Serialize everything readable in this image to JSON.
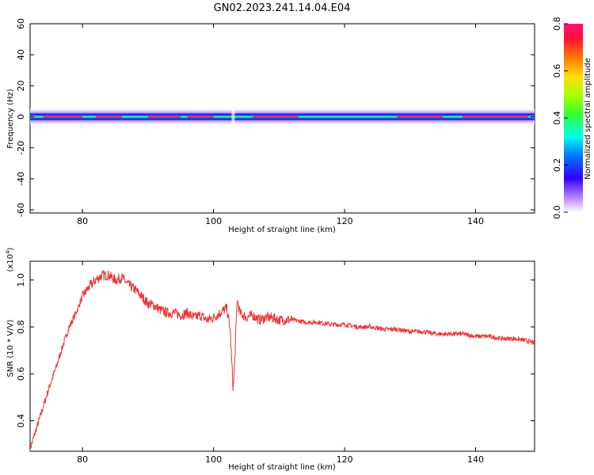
{
  "title": "GN02.2023.241.14.04.E04",
  "chart_data": [
    {
      "type": "heatmap",
      "xlabel": "Height of straight line (km)",
      "ylabel": "Frequency (Hz)",
      "xlim": [
        72,
        149
      ],
      "ylim": [
        -62,
        60
      ],
      "xticks": [
        80,
        100,
        120,
        140
      ],
      "yticks": [
        -60,
        -40,
        -20,
        0,
        20,
        40,
        60
      ],
      "colorbar": {
        "label": "Normalized spectral amplitude",
        "range": [
          0,
          0.8
        ],
        "ticks": [
          "0.0",
          "0.2",
          "0.4",
          "0.6",
          "0.8"
        ]
      },
      "band": {
        "freq_center": 0,
        "freq_halfwidth": 6,
        "dip_height_km": 103
      }
    },
    {
      "type": "line",
      "xlabel": "Height of straight line (km)",
      "ylabel": "SNR (10 * V/V)",
      "ylabel_multiplier": "(x10",
      "ylabel_multiplier_exp": "4",
      "ylabel_multiplier_close": ")",
      "xlim": [
        72,
        149
      ],
      "ylim": [
        0.27,
        1.08
      ],
      "xticks": [
        80,
        100,
        120,
        140
      ],
      "yticks": [
        "0.4",
        "0.6",
        "0.8",
        "1.0"
      ],
      "line_color": "#ee3333",
      "series": [
        {
          "x": [
            72,
            73,
            74,
            75,
            76,
            77,
            78,
            79,
            80,
            81,
            82,
            83,
            84,
            85,
            86,
            87,
            88,
            89,
            90,
            91,
            92,
            93,
            94,
            95,
            96,
            97,
            98,
            99,
            100,
            101,
            102,
            102.5,
            103,
            103.3,
            103.6,
            104,
            105,
            106,
            107,
            108,
            109,
            110,
            112,
            114,
            116,
            118,
            120,
            122,
            124,
            126,
            128,
            130,
            132,
            134,
            136,
            138,
            140,
            142,
            144,
            146,
            148,
            149
          ],
          "values": [
            0.28,
            0.37,
            0.46,
            0.55,
            0.63,
            0.72,
            0.8,
            0.86,
            0.93,
            0.97,
            1.0,
            1.02,
            1.02,
            1.0,
            1.01,
            0.98,
            0.96,
            0.93,
            0.9,
            0.89,
            0.87,
            0.86,
            0.86,
            0.85,
            0.86,
            0.84,
            0.85,
            0.83,
            0.84,
            0.86,
            0.88,
            0.8,
            0.53,
            0.7,
            0.92,
            0.86,
            0.84,
            0.85,
            0.83,
            0.84,
            0.84,
            0.83,
            0.83,
            0.82,
            0.82,
            0.81,
            0.81,
            0.8,
            0.8,
            0.79,
            0.79,
            0.78,
            0.78,
            0.77,
            0.77,
            0.77,
            0.76,
            0.76,
            0.75,
            0.75,
            0.74,
            0.73
          ]
        }
      ]
    }
  ]
}
